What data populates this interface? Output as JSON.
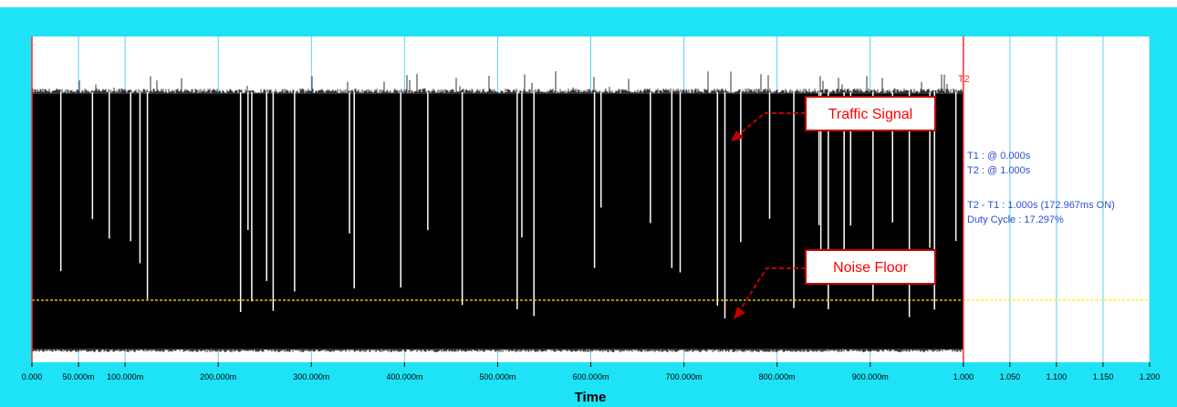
{
  "chart_data": {
    "type": "line",
    "xlabel": "Time",
    "xlim": [
      0,
      1.2
    ],
    "x_ticks": [
      {
        "value": 0.0,
        "label": "0.000"
      },
      {
        "value": 0.05,
        "label": "50.000m"
      },
      {
        "value": 0.1,
        "label": "100.000m"
      },
      {
        "value": 0.2,
        "label": "200.000m"
      },
      {
        "value": 0.3,
        "label": "300.000m"
      },
      {
        "value": 0.4,
        "label": "400.000m"
      },
      {
        "value": 0.5,
        "label": "500.000m"
      },
      {
        "value": 0.6,
        "label": "600.000m"
      },
      {
        "value": 0.7,
        "label": "700.000m"
      },
      {
        "value": 0.8,
        "label": "800.000m"
      },
      {
        "value": 0.9,
        "label": "900.000m"
      },
      {
        "value": 1.0,
        "label": "1.000"
      },
      {
        "value": 1.05,
        "label": "1.050"
      },
      {
        "value": 1.1,
        "label": "1.100"
      },
      {
        "value": 1.15,
        "label": "1.150"
      },
      {
        "value": 1.2,
        "label": "1.200"
      }
    ],
    "signal": {
      "start": 0.0,
      "end": 1.0
    },
    "gaps": [
      0.031,
      0.065,
      0.083,
      0.106,
      0.116,
      0.124,
      0.224,
      0.232,
      0.236,
      0.252,
      0.259,
      0.282,
      0.341,
      0.346,
      0.396,
      0.425,
      0.462,
      0.521,
      0.526,
      0.539,
      0.604,
      0.611,
      0.664,
      0.687,
      0.696,
      0.736,
      0.744,
      0.761,
      0.792,
      0.818,
      0.845,
      0.847,
      0.855,
      0.872,
      0.879,
      0.903,
      0.924,
      0.942,
      0.964,
      0.969,
      0.992
    ],
    "noise_floor": true,
    "grid": true,
    "cursors": [
      {
        "name": "T1",
        "position": 0.0,
        "label": ""
      },
      {
        "name": "T2",
        "position": 1.0,
        "label": "T2"
      }
    ],
    "colors": {
      "frame": "#1ee3f7",
      "signal": "#000000",
      "gridline": "#5cd0f2",
      "cursor": "#ff2a2a",
      "noise_floor": "#ffee00",
      "readout": "#2d4fd2",
      "callout": "#ff0000"
    }
  },
  "readout": {
    "t1": "T1 : @ 0.000s",
    "t2": "T2 : @ 1.000s",
    "delta": "T2 - T1 : 1.000s (172.967ms ON)",
    "duty": "Duty Cycle : 17.297%"
  },
  "annotations": [
    {
      "id": "traffic",
      "text": "Traffic Signal"
    },
    {
      "id": "noise",
      "text": "Noise Floor"
    }
  ]
}
